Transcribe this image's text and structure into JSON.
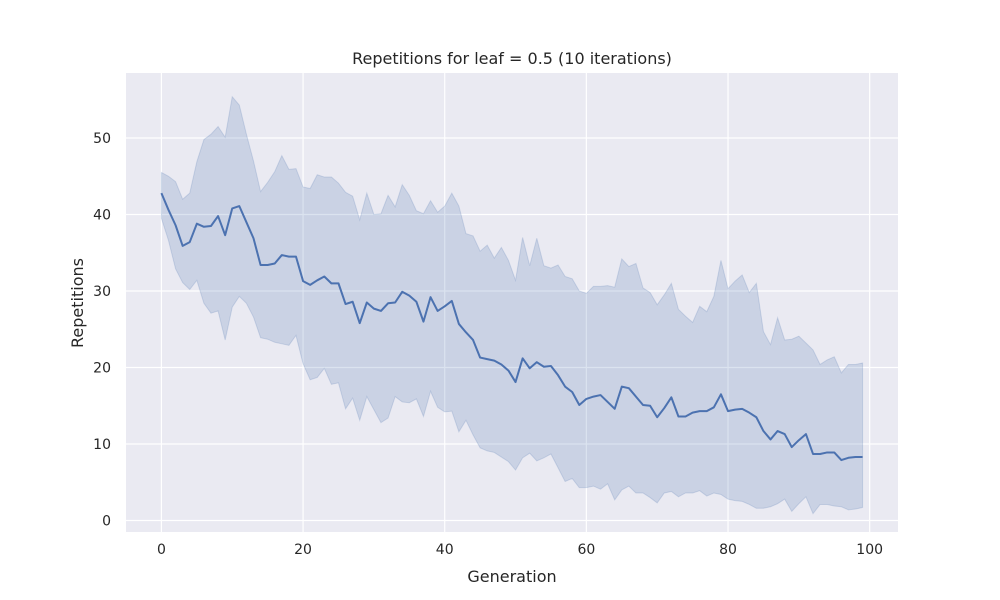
{
  "chart_data": {
    "type": "line",
    "title": "Repetitions for leaf = 0.5 (10 iterations)",
    "xlabel": "Generation",
    "ylabel": "Repetitions",
    "xlim": [
      -5,
      104
    ],
    "ylim": [
      -1.5,
      58.5
    ],
    "xticks": [
      0,
      20,
      40,
      60,
      80,
      100
    ],
    "yticks": [
      0,
      10,
      20,
      30,
      40,
      50
    ],
    "grid": true,
    "colors": {
      "background": "#eaeaf2",
      "grid": "#ffffff",
      "line": "#4c72b0",
      "band": "#4c72b0"
    },
    "series": [
      {
        "x": [
          0,
          1,
          2,
          3,
          4,
          5,
          6,
          7,
          8,
          9,
          10,
          11,
          12,
          13,
          14,
          15,
          16,
          17,
          18,
          19,
          20,
          21,
          22,
          23,
          24,
          25,
          26,
          27,
          28,
          29,
          30,
          31,
          32,
          33,
          34,
          35,
          36,
          37,
          38,
          39,
          40,
          41,
          42,
          43,
          44,
          45,
          46,
          47,
          48,
          49,
          50,
          51,
          52,
          53,
          54,
          55,
          56,
          57,
          58,
          59,
          60,
          61,
          62,
          63,
          64,
          65,
          66,
          67,
          68,
          69,
          70,
          71,
          72,
          73,
          74,
          75,
          76,
          77,
          78,
          79,
          80,
          81,
          82,
          83,
          84,
          85,
          86,
          87,
          88,
          89,
          90,
          91,
          92,
          93,
          94,
          95,
          96,
          97,
          98,
          99
        ],
        "y": [
          42.8,
          40.6,
          38.6,
          35.9,
          36.4,
          38.8,
          38.4,
          38.5,
          39.8,
          37.3,
          40.8,
          41.1,
          39,
          36.9,
          33.4,
          33.4,
          33.6,
          34.7,
          34.5,
          34.5,
          31.3,
          30.8,
          31.4,
          31.9,
          31,
          31,
          28.3,
          28.6,
          25.8,
          28.5,
          27.7,
          27.4,
          28.4,
          28.5,
          29.9,
          29.4,
          28.6,
          26,
          29.2,
          27.4,
          28,
          28.7,
          25.7,
          24.6,
          23.6,
          21.3,
          21.1,
          20.9,
          20.4,
          19.6,
          18.1,
          21.2,
          19.9,
          20.7,
          20.1,
          20.2,
          19,
          17.5,
          16.8,
          15.1,
          15.9,
          16.2,
          16.4,
          15.5,
          14.6,
          17.5,
          17.3,
          16.2,
          15.1,
          15,
          13.5,
          14.7,
          16.1,
          13.6,
          13.6,
          14.1,
          14.3,
          14.3,
          14.8,
          16.5,
          14.3,
          14.5,
          14.6,
          14.1,
          13.5,
          11.7,
          10.6,
          11.7,
          11.3,
          9.6,
          10.5,
          11.3,
          8.7,
          8.7,
          8.9,
          8.9,
          7.9,
          8.2,
          8.3,
          8.3
        ]
      }
    ],
    "band": {
      "upper": [
        45.5,
        45,
        44.3,
        42,
        42.8,
        46.9,
        49.8,
        50.5,
        51.5,
        50.1,
        55.4,
        54.3,
        50.5,
        47,
        43,
        44.2,
        45.6,
        47.7,
        45.9,
        46,
        43.6,
        43.4,
        45.2,
        44.9,
        44.9,
        44.1,
        42.9,
        42.4,
        39.3,
        42.8,
        40,
        40.1,
        42.5,
        41,
        43.9,
        42.5,
        40.5,
        40.1,
        41.8,
        40.3,
        41.1,
        42.8,
        41.1,
        37.5,
        37.2,
        35.2,
        36,
        34.3,
        35.7,
        34,
        31.4,
        37,
        33.3,
        36.9,
        33.3,
        33,
        33.4,
        31.9,
        31.6,
        30,
        29.7,
        30.6,
        30.6,
        30.7,
        30.5,
        34.2,
        33.2,
        33.6,
        30.4,
        29.8,
        28.2,
        29.5,
        31,
        27.6,
        26.7,
        25.9,
        28,
        27.3,
        29.3,
        34,
        30.3,
        31.3,
        32.1,
        29.8,
        31,
        24.7,
        23,
        26.5,
        23.6,
        23.7,
        24.1,
        23.2,
        22.3,
        20.4,
        21,
        21.4,
        19.3,
        20.4,
        20.4,
        20.6
      ],
      "lower": [
        39.5,
        36.6,
        32.9,
        31.1,
        30.2,
        31.4,
        28.4,
        27.1,
        27.4,
        23.6,
        27.9,
        29.3,
        28.4,
        26.6,
        23.9,
        23.7,
        23.3,
        23.1,
        22.9,
        24.2,
        20.5,
        18.4,
        18.7,
        19.9,
        17.8,
        18,
        14.6,
        16,
        13.1,
        16.2,
        14.5,
        12.8,
        13.4,
        16.2,
        15.5,
        15.4,
        15.9,
        13.6,
        16.9,
        14.8,
        14.2,
        14.3,
        11.6,
        13.1,
        11.2,
        9.5,
        9.1,
        8.9,
        8.3,
        7.7,
        6.6,
        8.2,
        8.8,
        7.8,
        8.2,
        8.7,
        6.9,
        5.1,
        5.5,
        4.3,
        4.3,
        4.5,
        4.1,
        4.8,
        2.7,
        4,
        4.5,
        3.6,
        3.6,
        3,
        2.3,
        3.6,
        3.8,
        3.1,
        3.6,
        3.6,
        3.9,
        3.2,
        3.6,
        3.4,
        2.8,
        2.6,
        2.5,
        2.1,
        1.6,
        1.6,
        1.8,
        2.2,
        2.8,
        1.2,
        2.2,
        3.1,
        0.9,
        2.1,
        2.1,
        1.9,
        1.8,
        1.4,
        1.5,
        1.7
      ]
    }
  }
}
